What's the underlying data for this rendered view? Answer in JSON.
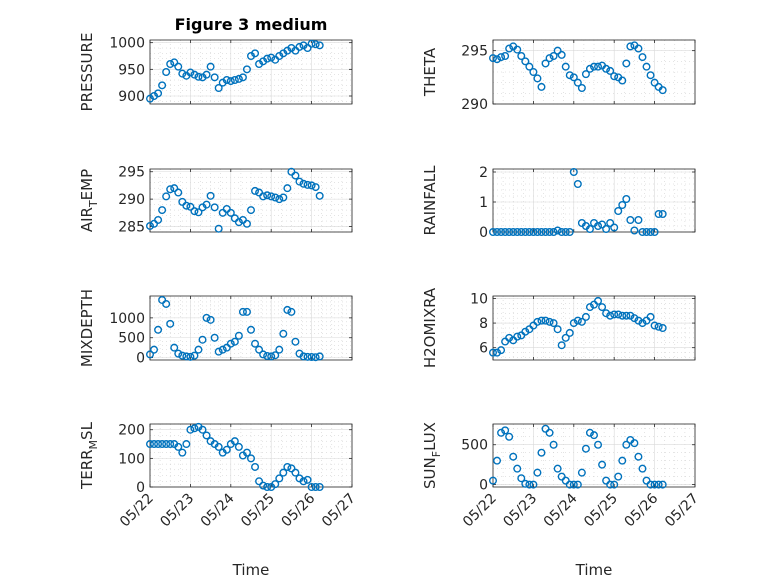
{
  "figure": {
    "title": "Figure 3 medium",
    "xlabel": "Time"
  },
  "colors": {
    "marker": "#0072BD",
    "axis": "#262626",
    "grid": "#d9d9d9"
  },
  "x_ticks": [
    "05/22",
    "05/23",
    "05/24",
    "05/25",
    "05/26",
    "05/27"
  ],
  "chart_data": [
    {
      "type": "scatter",
      "ylabel": "PRESSURE",
      "ylim": [
        885,
        1005
      ],
      "yticks": [
        900,
        950,
        1000
      ],
      "x": [
        0.0,
        0.1,
        0.2,
        0.3,
        0.4,
        0.5,
        0.6,
        0.7,
        0.8,
        0.9,
        1.0,
        1.1,
        1.2,
        1.3,
        1.4,
        1.5,
        1.6,
        1.7,
        1.8,
        1.9,
        2.0,
        2.1,
        2.2,
        2.3,
        2.4,
        2.5,
        2.6,
        2.7,
        2.8,
        2.9,
        3.0,
        3.1,
        3.2,
        3.3,
        3.4,
        3.5,
        3.6,
        3.7,
        3.8,
        3.9,
        4.0,
        4.1,
        4.2
      ],
      "y": [
        895,
        900,
        905,
        920,
        945,
        960,
        963,
        955,
        942,
        938,
        944,
        940,
        936,
        935,
        940,
        955,
        935,
        915,
        925,
        930,
        928,
        930,
        932,
        935,
        950,
        975,
        980,
        960,
        965,
        970,
        972,
        968,
        975,
        980,
        985,
        990,
        985,
        992,
        995,
        990,
        998,
        997,
        995
      ]
    },
    {
      "type": "scatter",
      "ylabel": "THETA",
      "ylim": [
        290,
        296
      ],
      "yticks": [
        290,
        295
      ],
      "x": [
        0.0,
        0.1,
        0.2,
        0.3,
        0.4,
        0.5,
        0.6,
        0.7,
        0.8,
        0.9,
        1.0,
        1.1,
        1.2,
        1.3,
        1.4,
        1.5,
        1.6,
        1.7,
        1.8,
        1.9,
        2.0,
        2.1,
        2.2,
        2.3,
        2.4,
        2.5,
        2.6,
        2.7,
        2.8,
        2.9,
        3.0,
        3.1,
        3.2,
        3.3,
        3.4,
        3.5,
        3.6,
        3.7,
        3.8,
        3.9,
        4.0,
        4.1,
        4.2
      ],
      "y": [
        294.3,
        294.2,
        294.4,
        294.5,
        295.2,
        295.4,
        295.1,
        294.5,
        294.0,
        293.5,
        293.0,
        292.4,
        291.6,
        293.8,
        294.3,
        294.5,
        295.0,
        294.6,
        293.5,
        292.7,
        292.5,
        292.0,
        291.5,
        292.8,
        293.3,
        293.5,
        293.5,
        293.6,
        293.3,
        293.1,
        292.6,
        292.5,
        292.2,
        293.8,
        295.4,
        295.5,
        295.2,
        294.4,
        293.5,
        292.7,
        292.0,
        291.6,
        291.3
      ]
    },
    {
      "type": "scatter",
      "ylabel": "AIR_TEMP",
      "ylim": [
        284,
        295.5
      ],
      "yticks": [
        285,
        290,
        295
      ],
      "x": [
        0.0,
        0.1,
        0.2,
        0.3,
        0.4,
        0.5,
        0.6,
        0.7,
        0.8,
        0.9,
        1.0,
        1.1,
        1.2,
        1.3,
        1.4,
        1.5,
        1.6,
        1.7,
        1.8,
        1.9,
        2.0,
        2.1,
        2.2,
        2.3,
        2.4,
        2.5,
        2.6,
        2.7,
        2.8,
        2.9,
        3.0,
        3.1,
        3.2,
        3.3,
        3.4,
        3.5,
        3.6,
        3.7,
        3.8,
        3.9,
        4.0,
        4.1,
        4.2
      ],
      "y": [
        285.1,
        285.5,
        286.2,
        288.0,
        290.5,
        291.8,
        292.0,
        291.2,
        289.5,
        288.8,
        288.6,
        287.8,
        287.6,
        288.5,
        289.0,
        290.6,
        288.5,
        284.6,
        287.5,
        288.2,
        287.5,
        286.5,
        285.8,
        286.2,
        285.5,
        288.0,
        291.5,
        291.2,
        290.5,
        290.7,
        290.5,
        290.3,
        290.0,
        290.3,
        292.0,
        295.0,
        294.3,
        293.2,
        292.8,
        292.6,
        292.5,
        292.2,
        290.6
      ]
    },
    {
      "type": "scatter",
      "ylabel": "RAINFALL",
      "ylim": [
        0,
        2.1
      ],
      "yticks": [
        0,
        1,
        2
      ],
      "x": [
        0.0,
        0.1,
        0.2,
        0.3,
        0.4,
        0.5,
        0.6,
        0.7,
        0.8,
        0.9,
        1.0,
        1.1,
        1.2,
        1.3,
        1.4,
        1.5,
        1.6,
        1.7,
        1.8,
        1.9,
        2.0,
        2.1,
        2.2,
        2.3,
        2.4,
        2.5,
        2.6,
        2.7,
        2.8,
        2.9,
        3.0,
        3.1,
        3.2,
        3.3,
        3.4,
        3.5,
        3.6,
        3.7,
        3.8,
        3.9,
        4.0,
        4.1,
        4.2
      ],
      "y": [
        0,
        0,
        0,
        0,
        0,
        0,
        0,
        0,
        0,
        0,
        0,
        0,
        0,
        0,
        0,
        0,
        0.05,
        0,
        0,
        0,
        2.0,
        1.6,
        0.3,
        0.2,
        0.1,
        0.3,
        0.2,
        0.25,
        0.1,
        0.3,
        0.15,
        0.7,
        0.9,
        1.1,
        0.4,
        0.05,
        0.4,
        0,
        0,
        0,
        0,
        0.6,
        0.6
      ]
    },
    {
      "type": "scatter",
      "ylabel": "MIXDEPTH",
      "ylim": [
        -60,
        1550
      ],
      "yticks": [
        0,
        500,
        1000
      ],
      "x": [
        0.0,
        0.1,
        0.2,
        0.3,
        0.4,
        0.5,
        0.6,
        0.7,
        0.8,
        0.9,
        1.0,
        1.1,
        1.2,
        1.3,
        1.4,
        1.5,
        1.6,
        1.7,
        1.8,
        1.9,
        2.0,
        2.1,
        2.2,
        2.3,
        2.4,
        2.5,
        2.6,
        2.7,
        2.8,
        2.9,
        3.0,
        3.1,
        3.2,
        3.3,
        3.4,
        3.5,
        3.6,
        3.7,
        3.8,
        3.9,
        4.0,
        4.1,
        4.2
      ],
      "y": [
        80,
        200,
        700,
        1450,
        1350,
        850,
        250,
        100,
        50,
        30,
        20,
        50,
        200,
        450,
        1000,
        950,
        500,
        150,
        200,
        250,
        350,
        400,
        550,
        1150,
        1150,
        700,
        350,
        200,
        80,
        40,
        30,
        60,
        200,
        600,
        1200,
        1150,
        400,
        100,
        30,
        20,
        15,
        10,
        30
      ]
    },
    {
      "type": "scatter",
      "ylabel": "H2OMIXRA",
      "ylim": [
        5,
        10.2
      ],
      "yticks": [
        6,
        8,
        10
      ],
      "x": [
        0.0,
        0.1,
        0.2,
        0.3,
        0.4,
        0.5,
        0.6,
        0.7,
        0.8,
        0.9,
        1.0,
        1.1,
        1.2,
        1.3,
        1.4,
        1.5,
        1.6,
        1.7,
        1.8,
        1.9,
        2.0,
        2.1,
        2.2,
        2.3,
        2.4,
        2.5,
        2.6,
        2.7,
        2.8,
        2.9,
        3.0,
        3.1,
        3.2,
        3.3,
        3.4,
        3.5,
        3.6,
        3.7,
        3.8,
        3.9,
        4.0,
        4.1,
        4.2
      ],
      "y": [
        5.6,
        5.6,
        5.8,
        6.5,
        6.8,
        6.6,
        6.9,
        7.0,
        7.3,
        7.5,
        7.8,
        8.1,
        8.2,
        8.2,
        8.1,
        8.0,
        7.5,
        6.2,
        6.8,
        7.2,
        8.0,
        8.2,
        8.1,
        8.5,
        9.3,
        9.5,
        9.8,
        9.3,
        8.8,
        8.6,
        8.7,
        8.7,
        8.6,
        8.6,
        8.6,
        8.4,
        8.2,
        8.0,
        8.2,
        8.5,
        7.8,
        7.7,
        7.6
      ]
    },
    {
      "type": "scatter",
      "ylabel": "TERR_MSL",
      "ylim": [
        0,
        220
      ],
      "yticks": [
        0,
        100,
        200
      ],
      "x": [
        0.0,
        0.1,
        0.2,
        0.3,
        0.4,
        0.5,
        0.6,
        0.7,
        0.8,
        0.9,
        1.0,
        1.1,
        1.2,
        1.3,
        1.4,
        1.5,
        1.6,
        1.7,
        1.8,
        1.9,
        2.0,
        2.1,
        2.2,
        2.3,
        2.4,
        2.5,
        2.6,
        2.7,
        2.8,
        2.9,
        3.0,
        3.1,
        3.2,
        3.3,
        3.4,
        3.5,
        3.6,
        3.7,
        3.8,
        3.9,
        4.0,
        4.1,
        4.2
      ],
      "y": [
        150,
        150,
        150,
        150,
        150,
        150,
        150,
        140,
        120,
        150,
        200,
        205,
        210,
        200,
        180,
        160,
        150,
        140,
        120,
        130,
        150,
        160,
        140,
        110,
        120,
        100,
        70,
        20,
        5,
        0,
        0,
        10,
        30,
        50,
        70,
        65,
        50,
        30,
        20,
        25,
        0,
        0,
        0
      ]
    },
    {
      "type": "scatter",
      "ylabel": "SUN_FLUX",
      "ylim": [
        -30,
        760
      ],
      "yticks": [
        0,
        500
      ],
      "x": [
        0.0,
        0.1,
        0.2,
        0.3,
        0.4,
        0.5,
        0.6,
        0.7,
        0.8,
        0.9,
        1.0,
        1.1,
        1.2,
        1.3,
        1.4,
        1.5,
        1.6,
        1.7,
        1.8,
        1.9,
        2.0,
        2.1,
        2.2,
        2.3,
        2.4,
        2.5,
        2.6,
        2.7,
        2.8,
        2.9,
        3.0,
        3.1,
        3.2,
        3.3,
        3.4,
        3.5,
        3.6,
        3.7,
        3.8,
        3.9,
        4.0,
        4.1,
        4.2
      ],
      "y": [
        50,
        300,
        650,
        680,
        600,
        350,
        200,
        80,
        10,
        0,
        0,
        150,
        400,
        700,
        650,
        500,
        200,
        100,
        50,
        0,
        0,
        0,
        150,
        450,
        650,
        620,
        500,
        250,
        50,
        0,
        0,
        100,
        300,
        500,
        560,
        520,
        350,
        200,
        50,
        0,
        0,
        0,
        0
      ]
    }
  ]
}
